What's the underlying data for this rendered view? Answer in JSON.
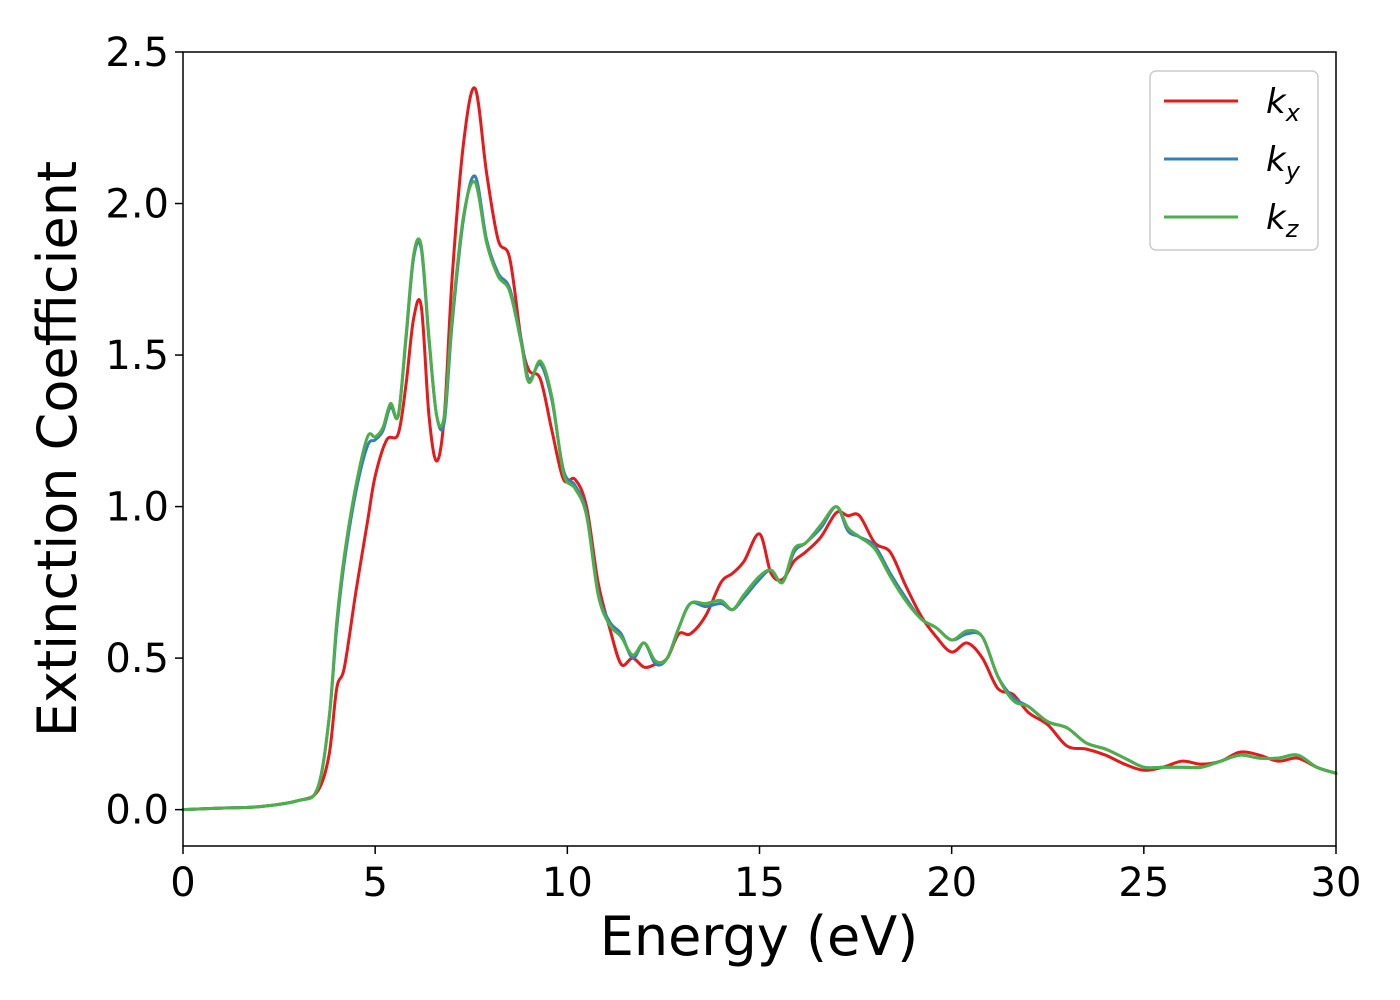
{
  "chart_data": {
    "type": "line",
    "title": "",
    "xlabel": "Energy (eV)",
    "ylabel": "Extinction Coefficient",
    "xlim": [
      0,
      30
    ],
    "ylim": [
      -0.12,
      2.5
    ],
    "xticks": [
      0,
      5,
      10,
      15,
      20,
      25,
      30
    ],
    "xtick_labels": [
      "0",
      "5",
      "10",
      "15",
      "20",
      "25",
      "30"
    ],
    "yticks": [
      0.0,
      0.5,
      1.0,
      1.5,
      2.0,
      2.5
    ],
    "ytick_labels": [
      "0.0",
      "0.5",
      "1.0",
      "1.5",
      "2.0",
      "2.5"
    ],
    "grid": false,
    "legend_position": "top-right",
    "series": [
      {
        "name": "k",
        "subscript": "x",
        "color": "#e41a1c",
        "x": [
          0,
          1,
          2,
          3,
          3.5,
          3.8,
          4.0,
          4.2,
          4.5,
          4.8,
          5.0,
          5.3,
          5.6,
          5.8,
          6.0,
          6.2,
          6.4,
          6.6,
          6.8,
          7.0,
          7.3,
          7.6,
          7.9,
          8.2,
          8.5,
          8.8,
          9.0,
          9.3,
          9.6,
          9.9,
          10.2,
          10.5,
          10.8,
          11.1,
          11.4,
          11.7,
          12.0,
          12.3,
          12.6,
          12.9,
          13.2,
          13.6,
          14.0,
          14.3,
          14.6,
          15.0,
          15.3,
          15.6,
          15.9,
          16.2,
          16.6,
          17.0,
          17.3,
          17.6,
          18.0,
          18.4,
          18.8,
          19.2,
          19.6,
          20.0,
          20.4,
          20.8,
          21.2,
          21.6,
          22.0,
          22.5,
          23.0,
          23.5,
          24.0,
          24.5,
          25.0,
          25.5,
          26.0,
          26.5,
          27.0,
          27.5,
          28.0,
          28.5,
          29.0,
          29.5,
          30.0
        ],
        "y": [
          0.0,
          0.005,
          0.01,
          0.03,
          0.06,
          0.18,
          0.4,
          0.47,
          0.72,
          0.95,
          1.1,
          1.22,
          1.24,
          1.4,
          1.62,
          1.66,
          1.3,
          1.15,
          1.3,
          1.75,
          2.2,
          2.38,
          2.1,
          1.88,
          1.82,
          1.55,
          1.45,
          1.42,
          1.25,
          1.09,
          1.09,
          1.0,
          0.75,
          0.6,
          0.48,
          0.5,
          0.47,
          0.48,
          0.5,
          0.58,
          0.58,
          0.64,
          0.75,
          0.78,
          0.82,
          0.91,
          0.78,
          0.76,
          0.82,
          0.85,
          0.9,
          0.98,
          0.97,
          0.97,
          0.88,
          0.85,
          0.74,
          0.64,
          0.57,
          0.52,
          0.55,
          0.5,
          0.4,
          0.38,
          0.32,
          0.28,
          0.21,
          0.2,
          0.18,
          0.15,
          0.13,
          0.14,
          0.16,
          0.15,
          0.16,
          0.19,
          0.18,
          0.16,
          0.17,
          0.14,
          0.12
        ]
      },
      {
        "name": "k",
        "subscript": "y",
        "color": "#377eb8",
        "x": [
          0,
          1,
          2,
          3,
          3.5,
          3.8,
          4.0,
          4.2,
          4.5,
          4.8,
          5.0,
          5.2,
          5.4,
          5.6,
          5.8,
          6.0,
          6.2,
          6.4,
          6.6,
          6.8,
          7.0,
          7.3,
          7.6,
          7.9,
          8.2,
          8.5,
          8.8,
          9.0,
          9.3,
          9.6,
          9.9,
          10.2,
          10.5,
          10.8,
          11.1,
          11.4,
          11.7,
          12.0,
          12.3,
          12.6,
          12.9,
          13.2,
          13.6,
          14.0,
          14.3,
          14.6,
          15.0,
          15.3,
          15.6,
          15.9,
          16.2,
          16.6,
          17.0,
          17.3,
          17.6,
          18.0,
          18.4,
          18.8,
          19.2,
          19.6,
          20.0,
          20.4,
          20.8,
          21.2,
          21.6,
          22.0,
          22.5,
          23.0,
          23.5,
          24.0,
          24.5,
          25.0,
          25.5,
          26.0,
          26.5,
          27.0,
          27.5,
          28.0,
          28.5,
          29.0,
          29.5,
          30.0
        ],
        "y": [
          0.0,
          0.005,
          0.01,
          0.03,
          0.07,
          0.3,
          0.6,
          0.82,
          1.05,
          1.2,
          1.22,
          1.25,
          1.33,
          1.3,
          1.55,
          1.82,
          1.85,
          1.55,
          1.3,
          1.28,
          1.6,
          1.95,
          2.09,
          1.88,
          1.77,
          1.72,
          1.55,
          1.42,
          1.47,
          1.35,
          1.12,
          1.07,
          0.98,
          0.72,
          0.62,
          0.58,
          0.5,
          0.55,
          0.48,
          0.5,
          0.6,
          0.68,
          0.67,
          0.68,
          0.66,
          0.7,
          0.76,
          0.79,
          0.75,
          0.85,
          0.88,
          0.93,
          1.0,
          0.92,
          0.9,
          0.87,
          0.78,
          0.7,
          0.63,
          0.6,
          0.56,
          0.58,
          0.57,
          0.44,
          0.37,
          0.34,
          0.29,
          0.27,
          0.22,
          0.2,
          0.17,
          0.14,
          0.14,
          0.14,
          0.14,
          0.16,
          0.18,
          0.17,
          0.17,
          0.18,
          0.14,
          0.12
        ]
      },
      {
        "name": "k",
        "subscript": "z",
        "color": "#4daf4a",
        "x": [
          0,
          1,
          2,
          3,
          3.5,
          3.8,
          4.0,
          4.2,
          4.5,
          4.8,
          5.0,
          5.2,
          5.4,
          5.6,
          5.8,
          6.0,
          6.2,
          6.4,
          6.6,
          6.8,
          7.0,
          7.3,
          7.6,
          7.9,
          8.2,
          8.5,
          8.8,
          9.0,
          9.3,
          9.6,
          9.9,
          10.2,
          10.5,
          10.8,
          11.1,
          11.4,
          11.7,
          12.0,
          12.3,
          12.6,
          12.9,
          13.2,
          13.6,
          14.0,
          14.3,
          14.6,
          15.0,
          15.3,
          15.6,
          15.9,
          16.2,
          16.6,
          17.0,
          17.3,
          17.6,
          18.0,
          18.4,
          18.8,
          19.2,
          19.6,
          20.0,
          20.4,
          20.8,
          21.2,
          21.6,
          22.0,
          22.5,
          23.0,
          23.5,
          24.0,
          24.5,
          25.0,
          25.5,
          26.0,
          26.5,
          27.0,
          27.5,
          28.0,
          28.5,
          29.0,
          29.5,
          30.0
        ],
        "y": [
          0.0,
          0.005,
          0.01,
          0.03,
          0.07,
          0.3,
          0.62,
          0.84,
          1.07,
          1.23,
          1.23,
          1.26,
          1.34,
          1.3,
          1.56,
          1.83,
          1.86,
          1.56,
          1.3,
          1.3,
          1.62,
          1.96,
          2.07,
          1.87,
          1.76,
          1.71,
          1.54,
          1.41,
          1.48,
          1.36,
          1.11,
          1.06,
          0.97,
          0.71,
          0.61,
          0.57,
          0.51,
          0.55,
          0.49,
          0.5,
          0.6,
          0.68,
          0.68,
          0.69,
          0.66,
          0.71,
          0.77,
          0.79,
          0.75,
          0.86,
          0.88,
          0.94,
          1.0,
          0.93,
          0.9,
          0.86,
          0.77,
          0.69,
          0.63,
          0.6,
          0.56,
          0.59,
          0.57,
          0.44,
          0.36,
          0.34,
          0.29,
          0.27,
          0.22,
          0.2,
          0.17,
          0.14,
          0.14,
          0.14,
          0.14,
          0.16,
          0.18,
          0.17,
          0.17,
          0.18,
          0.14,
          0.12
        ]
      }
    ]
  }
}
